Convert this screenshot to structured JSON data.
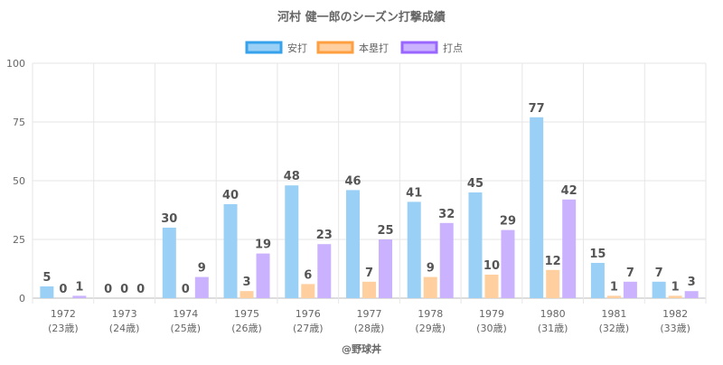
{
  "chart_data": {
    "type": "bar",
    "title": "河村 健一郎のシーズン打撃成績",
    "categories": [
      "1972",
      "1973",
      "1974",
      "1975",
      "1976",
      "1977",
      "1978",
      "1979",
      "1980",
      "1981",
      "1982"
    ],
    "category_sublabels": [
      "(23歳)",
      "(24歳)",
      "(25歳)",
      "(26歳)",
      "(27歳)",
      "(28歳)",
      "(29歳)",
      "(30歳)",
      "(31歳)",
      "(32歳)",
      "(33歳)"
    ],
    "series": [
      {
        "name": "安打",
        "values": [
          5,
          0,
          30,
          40,
          48,
          46,
          41,
          45,
          77,
          15,
          7
        ],
        "color": "#9ad0f5",
        "border": "#36a2eb"
      },
      {
        "name": "本塁打",
        "values": [
          0,
          0,
          0,
          3,
          6,
          7,
          9,
          10,
          12,
          1,
          1
        ],
        "color": "#ffcf9f",
        "border": "#ff9f40"
      },
      {
        "name": "打点",
        "values": [
          1,
          0,
          9,
          19,
          23,
          25,
          32,
          29,
          42,
          7,
          3
        ],
        "color": "#cbb2fe",
        "border": "#9966ff"
      }
    ],
    "ylim": [
      0,
      100
    ],
    "yticks": [
      0,
      25,
      50,
      75,
      100
    ],
    "legend": "top",
    "grid": true,
    "credit": "@野球丼"
  }
}
